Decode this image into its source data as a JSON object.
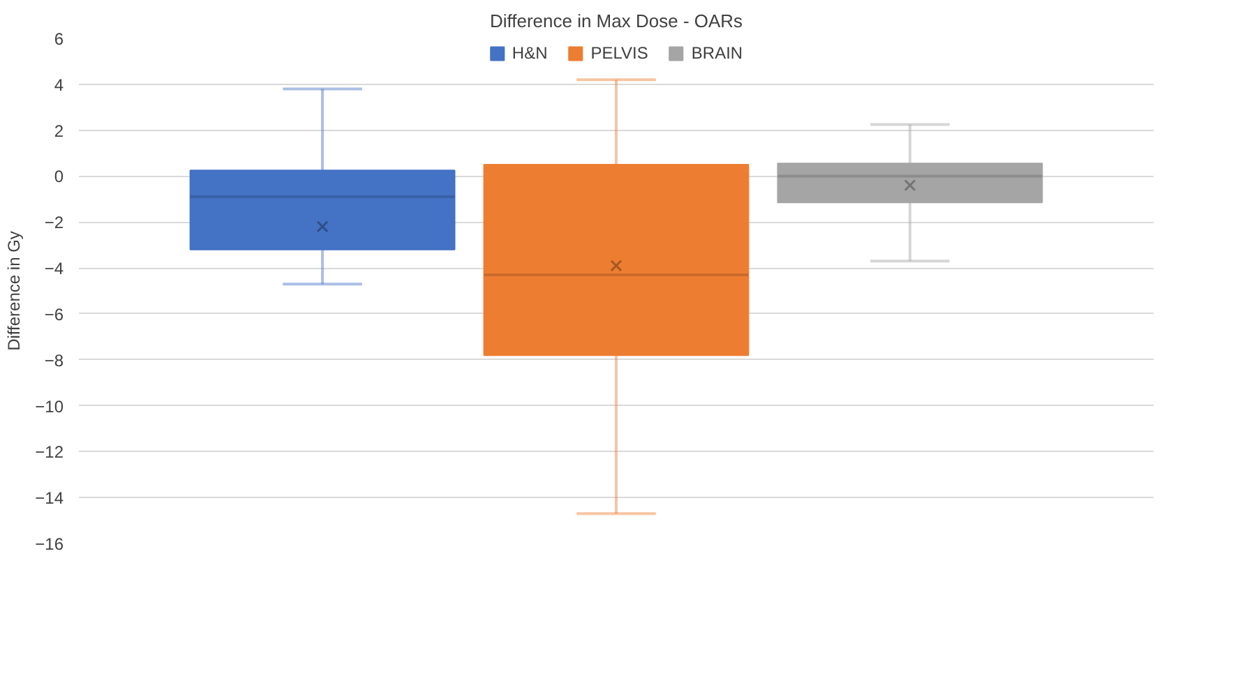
{
  "chart_data": {
    "type": "box",
    "title": "Difference in Max Dose - OARs",
    "ylabel": "Difference in Gy",
    "categories": [
      null
    ],
    "series": [
      {
        "name": "H&N",
        "color": "#4472c4",
        "boxes": [
          {
            "low": -4.7,
            "q1": -3.2,
            "median": -0.9,
            "q3": 0.25,
            "high": 3.8,
            "mean": -2.2
          }
        ]
      },
      {
        "name": "PELVIS",
        "color": "#ed7d31",
        "boxes": [
          {
            "low": -14.7,
            "q1": -7.8,
            "median": -4.3,
            "q3": 0.5,
            "high": 4.2,
            "mean": -3.9
          }
        ]
      },
      {
        "name": "BRAIN",
        "color": "#a5a5a5",
        "boxes": [
          {
            "low": -3.7,
            "q1": -1.15,
            "median": 0.0,
            "q3": 0.55,
            "high": 2.25,
            "mean": -0.4
          }
        ]
      }
    ],
    "ylim": [
      -16,
      6
    ],
    "yticks": [
      -16,
      -14,
      -12,
      -10,
      -8,
      -6,
      -4,
      -2,
      0,
      2,
      4,
      6
    ],
    "grid": "y",
    "legend": "top"
  }
}
